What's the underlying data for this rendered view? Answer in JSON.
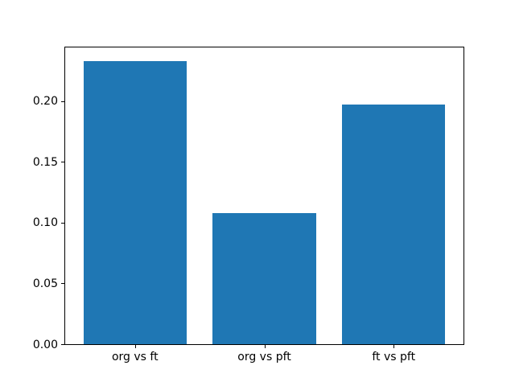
{
  "figure": {
    "background": "#ffffff",
    "axes_border_color": "#000000",
    "text_color": "#000000"
  },
  "chart_data": {
    "type": "bar",
    "categories": [
      "org vs ft",
      "org vs pft",
      "ft vs pft"
    ],
    "values": [
      0.233,
      0.108,
      0.197
    ],
    "title": "",
    "xlabel": "",
    "ylabel": "",
    "xlim": [
      -0.54,
      2.54
    ],
    "ylim": [
      0,
      0.2442
    ],
    "bar_width": 0.8,
    "bar_color": "#1f77b4",
    "yticks": [
      0.0,
      0.05,
      0.1,
      0.15,
      0.2
    ],
    "ytick_labels": [
      "0.00",
      "0.05",
      "0.10",
      "0.15",
      "0.20"
    ],
    "grid": false,
    "legend": "none"
  }
}
